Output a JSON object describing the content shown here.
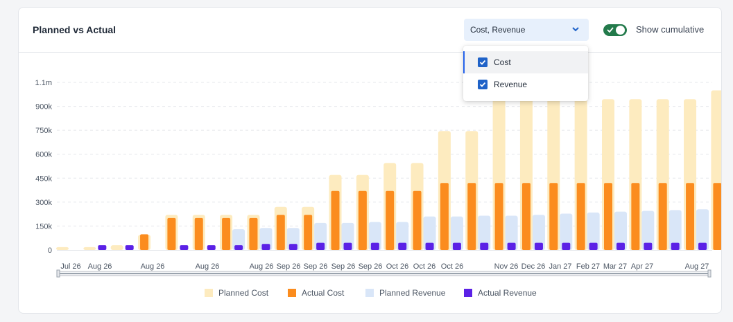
{
  "card": {
    "title": "Planned vs Actual"
  },
  "series_select": {
    "value": "Cost, Revenue",
    "options": [
      "Cost",
      "Revenue"
    ]
  },
  "cumulative_toggle": {
    "label": "Show cumulative",
    "on": true
  },
  "colors": {
    "planned_cost": "#fdebbf",
    "actual_cost": "#fb8c1e",
    "planned_revenue": "#d9e6f8",
    "actual_revenue": "#5b21e6",
    "toggle_on": "#237a4b",
    "checkbox": "#1f62c8"
  },
  "chart_data": {
    "type": "bar",
    "y_ticks": [
      "0",
      "150k",
      "300k",
      "450k",
      "600k",
      "750k",
      "900k",
      "1.1m"
    ],
    "y_tick_values": [
      0,
      150000,
      300000,
      450000,
      600000,
      750000,
      900000,
      1050000
    ],
    "x_tick_labels": [
      "Jul 26",
      "Aug 26",
      "Aug 26",
      "Aug 26",
      "Aug 26",
      "Sep 26",
      "Sep 26",
      "Sep 26",
      "Sep 26",
      "Oct 26",
      "Oct 26",
      "Oct 26",
      "Nov 26",
      "Dec 26",
      "Jan 27",
      "Feb 27",
      "Mar 27",
      "Apr 27",
      "Aug 27"
    ],
    "ylim": [
      0,
      1100000
    ],
    "grid": true,
    "series": [
      {
        "name": "Planned Cost",
        "values": [
          18000,
          18000,
          30000,
          95000,
          220000,
          220000,
          220000,
          220000,
          270000,
          270000,
          470000,
          470000,
          545000,
          545000,
          745000,
          745000,
          945000,
          945000,
          945000,
          945000,
          945000,
          945000,
          945000,
          945000,
          1000000
        ]
      },
      {
        "name": "Actual Cost",
        "values": [
          0,
          0,
          0,
          98000,
          200000,
          200000,
          200000,
          200000,
          220000,
          220000,
          370000,
          370000,
          370000,
          370000,
          420000,
          420000,
          420000,
          420000,
          420000,
          420000,
          420000,
          420000,
          420000,
          420000,
          420000
        ]
      },
      {
        "name": "Planned Revenue",
        "values": [
          0,
          0,
          0,
          0,
          0,
          0,
          130000,
          138000,
          138000,
          170000,
          170000,
          175000,
          175000,
          210000,
          210000,
          215000,
          215000,
          220000,
          228000,
          235000,
          240000,
          245000,
          250000,
          255000,
          258000
        ]
      },
      {
        "name": "Actual Revenue",
        "values": [
          0,
          30000,
          30000,
          0,
          30000,
          30000,
          30000,
          38000,
          38000,
          45000,
          45000,
          45000,
          45000,
          45000,
          45000,
          45000,
          45000,
          45000,
          45000,
          45000,
          45000,
          45000,
          45000,
          45000,
          45000
        ]
      }
    ]
  }
}
